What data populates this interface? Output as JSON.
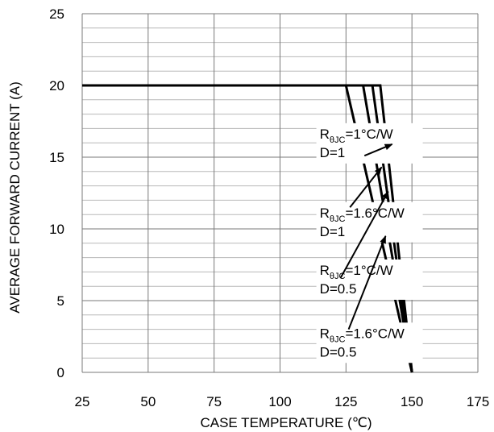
{
  "chart_data": {
    "type": "line",
    "xlabel": "CASE TEMPERATURE (℃)",
    "ylabel": "AVERAGE FORWARD CURRENT (A)",
    "xlim": [
      25,
      175
    ],
    "ylim": [
      0,
      25
    ],
    "x_ticks": [
      25,
      50,
      75,
      100,
      125,
      150,
      175
    ],
    "y_ticks": [
      0,
      5,
      10,
      15,
      20,
      25
    ],
    "grid": {
      "vertical_step": 25,
      "horizontal_step": 1
    },
    "series": [
      {
        "x": [
          25,
          138,
          150
        ],
        "y": [
          20,
          20,
          0
        ]
      },
      {
        "x": [
          25,
          135,
          150
        ],
        "y": [
          20,
          20,
          0
        ]
      },
      {
        "x": [
          25,
          131.5,
          150
        ],
        "y": [
          20,
          20,
          0
        ]
      },
      {
        "x": [
          25,
          125,
          150
        ],
        "y": [
          20,
          20,
          0
        ]
      }
    ],
    "annotations": [
      {
        "r_prefix": "R",
        "r_sub": "θJC",
        "r_value": "=1°C/W",
        "d_text": "D=1",
        "text_x": 115,
        "text_y": 16.3,
        "arrow_from": [
          132,
          15.1
        ],
        "arrow_to": [
          142.5,
          15.9
        ]
      },
      {
        "r_prefix": "R",
        "r_sub": "θJC",
        "r_value": "=1.6°C/W",
        "d_text": "D=1",
        "text_x": 115,
        "text_y": 10.8,
        "arrow_from": [
          126.5,
          11.5
        ],
        "arrow_to": [
          138.5,
          14.3
        ]
      },
      {
        "r_prefix": "R",
        "r_sub": "θJC",
        "r_value": "=1°C/W",
        "d_text": "D=0.5",
        "text_x": 115,
        "text_y": 6.8,
        "arrow_from": [
          123,
          6.6
        ],
        "arrow_to": [
          141,
          12.6
        ]
      },
      {
        "r_prefix": "R",
        "r_sub": "θJC",
        "r_value": "=1.6°C/W",
        "d_text": "D=0.5",
        "text_x": 115,
        "text_y": 2.4,
        "arrow_from": [
          126,
          3.0
        ],
        "arrow_to": [
          140,
          9.5
        ]
      }
    ]
  }
}
